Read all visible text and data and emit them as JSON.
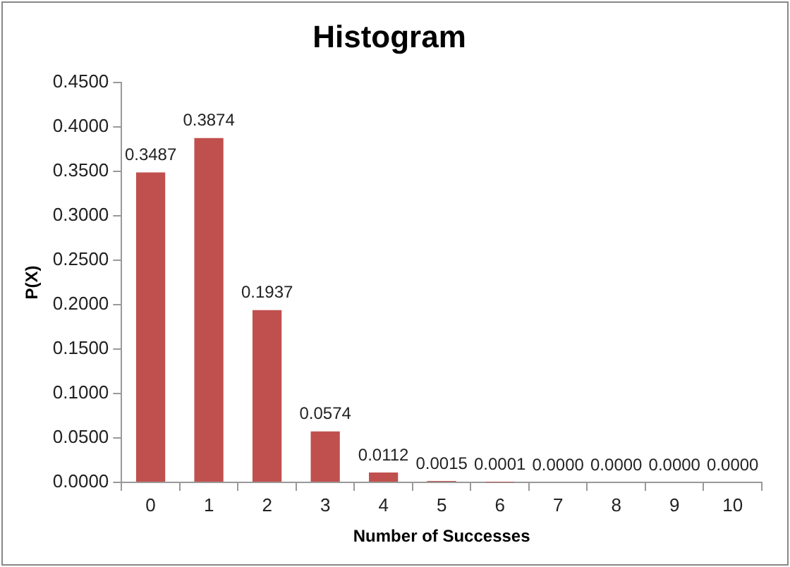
{
  "chart_data": {
    "type": "bar",
    "title": "Histogram",
    "xlabel": "Number of Successes",
    "ylabel": "P(X)",
    "categories": [
      "0",
      "1",
      "2",
      "3",
      "4",
      "5",
      "6",
      "7",
      "8",
      "9",
      "10"
    ],
    "values": [
      0.3487,
      0.3874,
      0.1937,
      0.0574,
      0.0112,
      0.0015,
      0.0001,
      0,
      0,
      0,
      0
    ],
    "value_labels": [
      "0.3487",
      "0.3874",
      "0.1937",
      "0.0574",
      "0.0112",
      "0.0015",
      "0.0001",
      "0.0000",
      "0.0000",
      "0.0000",
      "0.0000"
    ],
    "color": "#c0504d",
    "ylim": [
      0,
      0.45
    ],
    "yticks": [
      {
        "value": 0,
        "label": "0.0000"
      },
      {
        "value": 0.05,
        "label": "0.0500"
      },
      {
        "value": 0.1,
        "label": "0.1000"
      },
      {
        "value": 0.15,
        "label": "0.1500"
      },
      {
        "value": 0.2,
        "label": "0.2000"
      },
      {
        "value": 0.25,
        "label": "0.2500"
      },
      {
        "value": 0.3,
        "label": "0.3000"
      },
      {
        "value": 0.35,
        "label": "0.3500"
      },
      {
        "value": 0.4,
        "label": "0.4000"
      },
      {
        "value": 0.45,
        "label": "0.4500"
      }
    ],
    "grid": false,
    "legend": false
  }
}
